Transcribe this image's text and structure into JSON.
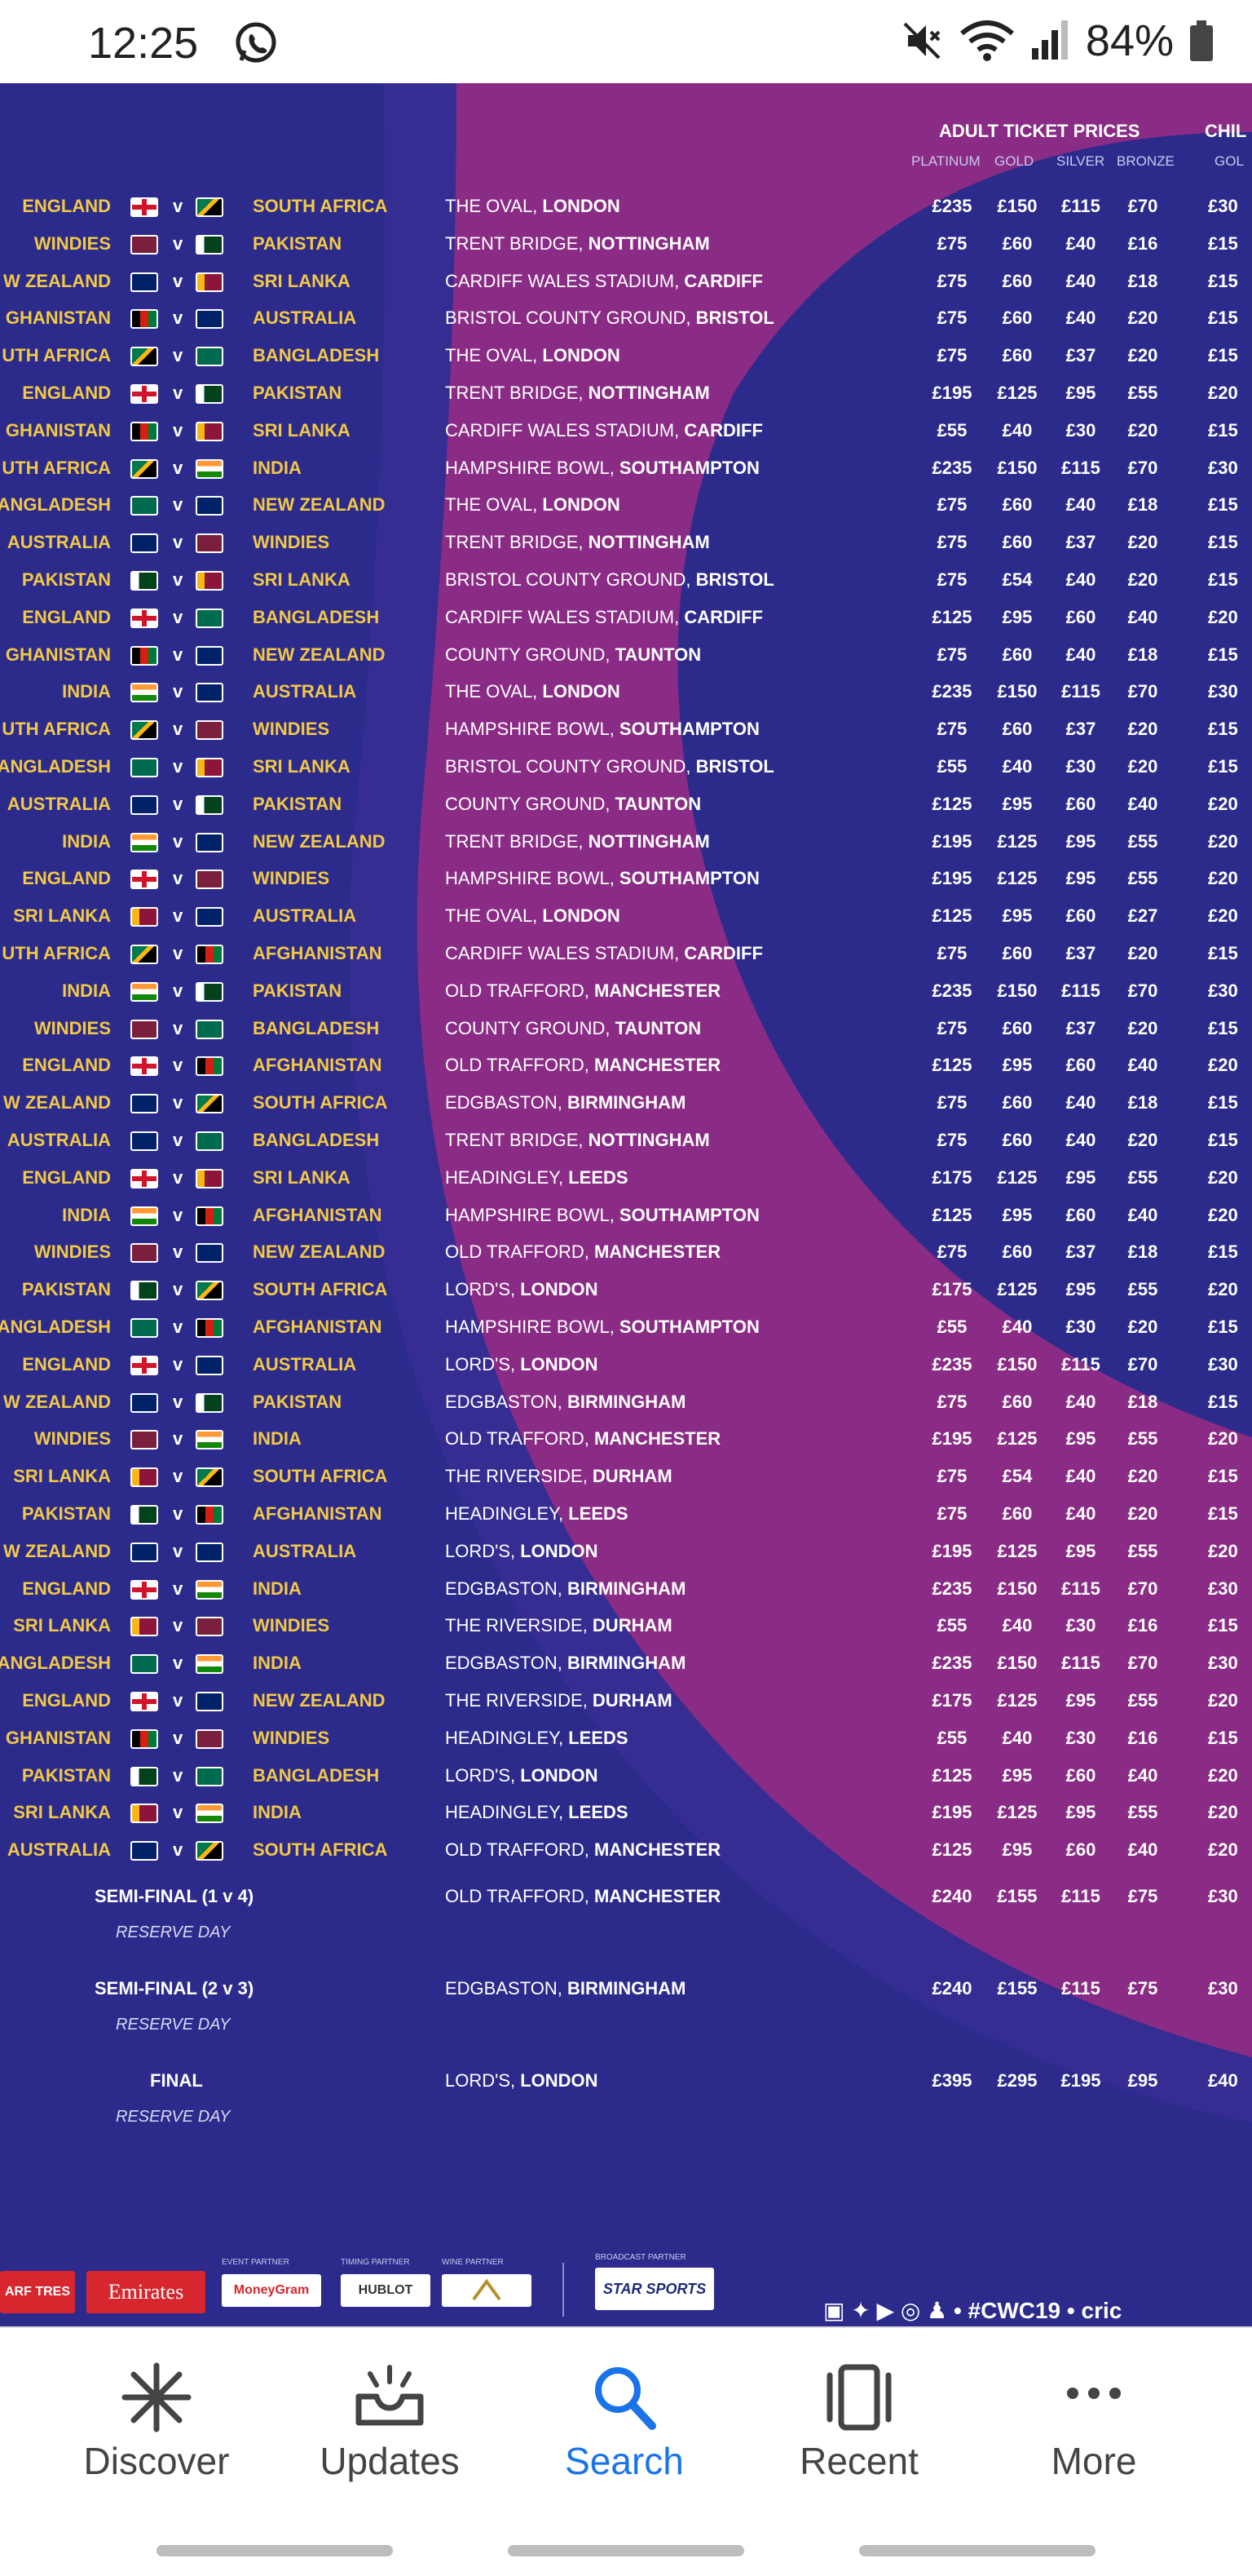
{
  "status_bar": {
    "time": "12:25",
    "battery": "84%",
    "icons": [
      "whatsapp-icon",
      "mute-icon",
      "wifi-icon",
      "signal-icon",
      "battery-icon"
    ]
  },
  "header": {
    "adult_title": "ADULT TICKET PRICES",
    "child_title": "CHIL",
    "cols": [
      "PLATINUM",
      "GOLD",
      "SILVER",
      "BRONZE"
    ],
    "child_col": "GOL"
  },
  "colors": {
    "background": "#2c2b8c",
    "swoosh": "#8a2c86",
    "team_text": "#f2c945",
    "accent_blue": "#1a73e8"
  },
  "matches": [
    {
      "t1": "ENGLAND",
      "t2": "SOUTH AFRICA",
      "venue": "THE OVAL,",
      "city": "LONDON",
      "p": [
        "£235",
        "£150",
        "£115",
        "£70"
      ],
      "c": "£30",
      "f1": "eng",
      "f2": "rsa"
    },
    {
      "t1": "WINDIES",
      "t2": "PAKISTAN",
      "venue": "TRENT BRIDGE,",
      "city": "NOTTINGHAM",
      "p": [
        "£75",
        "£60",
        "£40",
        "£16"
      ],
      "c": "£15",
      "f1": "wi",
      "f2": "pak"
    },
    {
      "t1": "W ZEALAND",
      "t2": "SRI LANKA",
      "venue": "CARDIFF WALES STADIUM,",
      "city": "CARDIFF",
      "p": [
        "£75",
        "£60",
        "£40",
        "£18"
      ],
      "c": "£15",
      "f1": "nz",
      "f2": "sl"
    },
    {
      "t1": "GHANISTAN",
      "t2": "AUSTRALIA",
      "venue": "BRISTOL COUNTY GROUND,",
      "city": "BRISTOL",
      "p": [
        "£75",
        "£60",
        "£40",
        "£20"
      ],
      "c": "£15",
      "f1": "afg",
      "f2": "aus"
    },
    {
      "t1": "UTH AFRICA",
      "t2": "BANGLADESH",
      "venue": "THE OVAL,",
      "city": "LONDON",
      "p": [
        "£75",
        "£60",
        "£37",
        "£20"
      ],
      "c": "£15",
      "f1": "rsa",
      "f2": "ban"
    },
    {
      "t1": "ENGLAND",
      "t2": "PAKISTAN",
      "venue": "TRENT BRIDGE,",
      "city": "NOTTINGHAM",
      "p": [
        "£195",
        "£125",
        "£95",
        "£55"
      ],
      "c": "£20",
      "f1": "eng",
      "f2": "pak"
    },
    {
      "t1": "GHANISTAN",
      "t2": "SRI LANKA",
      "venue": "CARDIFF WALES STADIUM,",
      "city": "CARDIFF",
      "p": [
        "£55",
        "£40",
        "£30",
        "£20"
      ],
      "c": "£15",
      "f1": "afg",
      "f2": "sl"
    },
    {
      "t1": "UTH AFRICA",
      "t2": "INDIA",
      "venue": "HAMPSHIRE BOWL,",
      "city": "SOUTHAMPTON",
      "p": [
        "£235",
        "£150",
        "£115",
        "£70"
      ],
      "c": "£30",
      "f1": "rsa",
      "f2": "ind"
    },
    {
      "t1": "ANGLADESH",
      "t2": "NEW ZEALAND",
      "venue": "THE OVAL,",
      "city": "LONDON",
      "p": [
        "£75",
        "£60",
        "£40",
        "£18"
      ],
      "c": "£15",
      "f1": "ban",
      "f2": "nz"
    },
    {
      "t1": "AUSTRALIA",
      "t2": "WINDIES",
      "venue": "TRENT BRIDGE,",
      "city": "NOTTINGHAM",
      "p": [
        "£75",
        "£60",
        "£37",
        "£20"
      ],
      "c": "£15",
      "f1": "aus",
      "f2": "wi"
    },
    {
      "t1": "PAKISTAN",
      "t2": "SRI LANKA",
      "venue": "BRISTOL COUNTY GROUND,",
      "city": "BRISTOL",
      "p": [
        "£75",
        "£54",
        "£40",
        "£20"
      ],
      "c": "£15",
      "f1": "pak",
      "f2": "sl"
    },
    {
      "t1": "ENGLAND",
      "t2": "BANGLADESH",
      "venue": "CARDIFF WALES STADIUM,",
      "city": "CARDIFF",
      "p": [
        "£125",
        "£95",
        "£60",
        "£40"
      ],
      "c": "£20",
      "f1": "eng",
      "f2": "ban"
    },
    {
      "t1": "GHANISTAN",
      "t2": "NEW ZEALAND",
      "venue": "COUNTY GROUND,",
      "city": "TAUNTON",
      "p": [
        "£75",
        "£60",
        "£40",
        "£18"
      ],
      "c": "£15",
      "f1": "afg",
      "f2": "nz"
    },
    {
      "t1": "INDIA",
      "t2": "AUSTRALIA",
      "venue": "THE OVAL,",
      "city": "LONDON",
      "p": [
        "£235",
        "£150",
        "£115",
        "£70"
      ],
      "c": "£30",
      "f1": "ind",
      "f2": "aus"
    },
    {
      "t1": "UTH AFRICA",
      "t2": "WINDIES",
      "venue": "HAMPSHIRE BOWL,",
      "city": "SOUTHAMPTON",
      "p": [
        "£75",
        "£60",
        "£37",
        "£20"
      ],
      "c": "£15",
      "f1": "rsa",
      "f2": "wi"
    },
    {
      "t1": "ANGLADESH",
      "t2": "SRI LANKA",
      "venue": "BRISTOL COUNTY GROUND,",
      "city": "BRISTOL",
      "p": [
        "£55",
        "£40",
        "£30",
        "£20"
      ],
      "c": "£15",
      "f1": "ban",
      "f2": "sl"
    },
    {
      "t1": "AUSTRALIA",
      "t2": "PAKISTAN",
      "venue": "COUNTY GROUND,",
      "city": "TAUNTON",
      "p": [
        "£125",
        "£95",
        "£60",
        "£40"
      ],
      "c": "£20",
      "f1": "aus",
      "f2": "pak"
    },
    {
      "t1": "INDIA",
      "t2": "NEW ZEALAND",
      "venue": "TRENT BRIDGE,",
      "city": "NOTTINGHAM",
      "p": [
        "£195",
        "£125",
        "£95",
        "£55"
      ],
      "c": "£20",
      "f1": "ind",
      "f2": "nz"
    },
    {
      "t1": "ENGLAND",
      "t2": "WINDIES",
      "venue": "HAMPSHIRE BOWL,",
      "city": "SOUTHAMPTON",
      "p": [
        "£195",
        "£125",
        "£95",
        "£55"
      ],
      "c": "£20",
      "f1": "eng",
      "f2": "wi"
    },
    {
      "t1": "SRI LANKA",
      "t2": "AUSTRALIA",
      "venue": "THE OVAL,",
      "city": "LONDON",
      "p": [
        "£125",
        "£95",
        "£60",
        "£27"
      ],
      "c": "£20",
      "f1": "sl",
      "f2": "aus"
    },
    {
      "t1": "UTH AFRICA",
      "t2": "AFGHANISTAN",
      "venue": "CARDIFF WALES STADIUM,",
      "city": "CARDIFF",
      "p": [
        "£75",
        "£60",
        "£37",
        "£20"
      ],
      "c": "£15",
      "f1": "rsa",
      "f2": "afg"
    },
    {
      "t1": "INDIA",
      "t2": "PAKISTAN",
      "venue": "OLD TRAFFORD,",
      "city": "MANCHESTER",
      "p": [
        "£235",
        "£150",
        "£115",
        "£70"
      ],
      "c": "£30",
      "f1": "ind",
      "f2": "pak"
    },
    {
      "t1": "WINDIES",
      "t2": "BANGLADESH",
      "venue": "COUNTY GROUND,",
      "city": "TAUNTON",
      "p": [
        "£75",
        "£60",
        "£37",
        "£20"
      ],
      "c": "£15",
      "f1": "wi",
      "f2": "ban"
    },
    {
      "t1": "ENGLAND",
      "t2": "AFGHANISTAN",
      "venue": "OLD TRAFFORD,",
      "city": "MANCHESTER",
      "p": [
        "£125",
        "£95",
        "£60",
        "£40"
      ],
      "c": "£20",
      "f1": "eng",
      "f2": "afg"
    },
    {
      "t1": "W ZEALAND",
      "t2": "SOUTH AFRICA",
      "venue": "EDGBASTON,",
      "city": "BIRMINGHAM",
      "p": [
        "£75",
        "£60",
        "£40",
        "£18"
      ],
      "c": "£15",
      "f1": "nz",
      "f2": "rsa"
    },
    {
      "t1": "AUSTRALIA",
      "t2": "BANGLADESH",
      "venue": "TRENT BRIDGE,",
      "city": "NOTTINGHAM",
      "p": [
        "£75",
        "£60",
        "£40",
        "£20"
      ],
      "c": "£15",
      "f1": "aus",
      "f2": "ban"
    },
    {
      "t1": "ENGLAND",
      "t2": "SRI LANKA",
      "venue": "HEADINGLEY,",
      "city": "LEEDS",
      "p": [
        "£175",
        "£125",
        "£95",
        "£55"
      ],
      "c": "£20",
      "f1": "eng",
      "f2": "sl"
    },
    {
      "t1": "INDIA",
      "t2": "AFGHANISTAN",
      "venue": "HAMPSHIRE BOWL,",
      "city": "SOUTHAMPTON",
      "p": [
        "£125",
        "£95",
        "£60",
        "£40"
      ],
      "c": "£20",
      "f1": "ind",
      "f2": "afg"
    },
    {
      "t1": "WINDIES",
      "t2": "NEW ZEALAND",
      "venue": "OLD TRAFFORD,",
      "city": "MANCHESTER",
      "p": [
        "£75",
        "£60",
        "£37",
        "£18"
      ],
      "c": "£15",
      "f1": "wi",
      "f2": "nz"
    },
    {
      "t1": "PAKISTAN",
      "t2": "SOUTH AFRICA",
      "venue": "LORD'S,",
      "city": "LONDON",
      "p": [
        "£175",
        "£125",
        "£95",
        "£55"
      ],
      "c": "£20",
      "f1": "pak",
      "f2": "rsa"
    },
    {
      "t1": "ANGLADESH",
      "t2": "AFGHANISTAN",
      "venue": "HAMPSHIRE BOWL,",
      "city": "SOUTHAMPTON",
      "p": [
        "£55",
        "£40",
        "£30",
        "£20"
      ],
      "c": "£15",
      "f1": "ban",
      "f2": "afg"
    },
    {
      "t1": "ENGLAND",
      "t2": "AUSTRALIA",
      "venue": "LORD'S,",
      "city": "LONDON",
      "p": [
        "£235",
        "£150",
        "£115",
        "£70"
      ],
      "c": "£30",
      "f1": "eng",
      "f2": "aus"
    },
    {
      "t1": "W ZEALAND",
      "t2": "PAKISTAN",
      "venue": "EDGBASTON,",
      "city": "BIRMINGHAM",
      "p": [
        "£75",
        "£60",
        "£40",
        "£18"
      ],
      "c": "£15",
      "f1": "nz",
      "f2": "pak"
    },
    {
      "t1": "WINDIES",
      "t2": "INDIA",
      "venue": "OLD TRAFFORD,",
      "city": "MANCHESTER",
      "p": [
        "£195",
        "£125",
        "£95",
        "£55"
      ],
      "c": "£20",
      "f1": "wi",
      "f2": "ind"
    },
    {
      "t1": "SRI LANKA",
      "t2": "SOUTH AFRICA",
      "venue": "THE RIVERSIDE,",
      "city": "DURHAM",
      "p": [
        "£75",
        "£54",
        "£40",
        "£20"
      ],
      "c": "£15",
      "f1": "sl",
      "f2": "rsa"
    },
    {
      "t1": "PAKISTAN",
      "t2": "AFGHANISTAN",
      "venue": "HEADINGLEY,",
      "city": "LEEDS",
      "p": [
        "£75",
        "£60",
        "£40",
        "£20"
      ],
      "c": "£15",
      "f1": "pak",
      "f2": "afg"
    },
    {
      "t1": "W ZEALAND",
      "t2": "AUSTRALIA",
      "venue": "LORD'S,",
      "city": "LONDON",
      "p": [
        "£195",
        "£125",
        "£95",
        "£55"
      ],
      "c": "£20",
      "f1": "nz",
      "f2": "aus"
    },
    {
      "t1": "ENGLAND",
      "t2": "INDIA",
      "venue": "EDGBASTON,",
      "city": "BIRMINGHAM",
      "p": [
        "£235",
        "£150",
        "£115",
        "£70"
      ],
      "c": "£30",
      "f1": "eng",
      "f2": "ind"
    },
    {
      "t1": "SRI LANKA",
      "t2": "WINDIES",
      "venue": "THE RIVERSIDE,",
      "city": "DURHAM",
      "p": [
        "£55",
        "£40",
        "£30",
        "£16"
      ],
      "c": "£15",
      "f1": "sl",
      "f2": "wi"
    },
    {
      "t1": "ANGLADESH",
      "t2": "INDIA",
      "venue": "EDGBASTON,",
      "city": "BIRMINGHAM",
      "p": [
        "£235",
        "£150",
        "£115",
        "£70"
      ],
      "c": "£30",
      "f1": "ban",
      "f2": "ind"
    },
    {
      "t1": "ENGLAND",
      "t2": "NEW ZEALAND",
      "venue": "THE RIVERSIDE,",
      "city": "DURHAM",
      "p": [
        "£175",
        "£125",
        "£95",
        "£55"
      ],
      "c": "£20",
      "f1": "eng",
      "f2": "nz"
    },
    {
      "t1": "GHANISTAN",
      "t2": "WINDIES",
      "venue": "HEADINGLEY,",
      "city": "LEEDS",
      "p": [
        "£55",
        "£40",
        "£30",
        "£16"
      ],
      "c": "£15",
      "f1": "afg",
      "f2": "wi"
    },
    {
      "t1": "PAKISTAN",
      "t2": "BANGLADESH",
      "venue": "LORD'S,",
      "city": "LONDON",
      "p": [
        "£125",
        "£95",
        "£60",
        "£40"
      ],
      "c": "£20",
      "f1": "pak",
      "f2": "ban"
    },
    {
      "t1": "SRI LANKA",
      "t2": "INDIA",
      "venue": "HEADINGLEY,",
      "city": "LEEDS",
      "p": [
        "£195",
        "£125",
        "£95",
        "£55"
      ],
      "c": "£20",
      "f1": "sl",
      "f2": "ind"
    },
    {
      "t1": "AUSTRALIA",
      "t2": "SOUTH AFRICA",
      "venue": "OLD TRAFFORD,",
      "city": "MANCHESTER",
      "p": [
        "£125",
        "£95",
        "£60",
        "£40"
      ],
      "c": "£20",
      "f1": "aus",
      "f2": "rsa"
    }
  ],
  "knockouts": [
    {
      "label": "SEMI-FINAL (1 v 4)",
      "reserve": "RESERVE DAY",
      "venue": "OLD TRAFFORD,",
      "city": "MANCHESTER",
      "p": [
        "£240",
        "£155",
        "£115",
        "£75"
      ],
      "c": "£30"
    },
    {
      "label": "SEMI-FINAL (2 v 3)",
      "reserve": "RESERVE DAY",
      "venue": "EDGBASTON,",
      "city": "BIRMINGHAM",
      "p": [
        "£240",
        "£155",
        "£115",
        "£75"
      ],
      "c": "£30"
    },
    {
      "label": "FINAL",
      "reserve": "RESERVE DAY",
      "venue": "LORD'S,",
      "city": "LONDON",
      "p": [
        "£395",
        "£295",
        "£195",
        "£95"
      ],
      "c": "£40"
    }
  ],
  "sponsors": {
    "left_partial": "ARF TRES",
    "emirates": "Emirates",
    "event_partner_caption": "EVENT PARTNER",
    "event_partner": "MoneyGram",
    "timing_partner_caption": "TIMING PARTNER",
    "timing_partner": "HUBLOT",
    "wine_partner_caption": "WINE PARTNER",
    "wine_partner": "",
    "broadcast_caption": "BROADCAST PARTNER",
    "broadcast": "STAR SPORTS",
    "social": "#CWC19",
    "site_partial": "cric"
  },
  "bottom_nav": [
    {
      "label": "Discover",
      "icon": "asterisk-icon",
      "active": false
    },
    {
      "label": "Updates",
      "icon": "updates-tray-icon",
      "active": false
    },
    {
      "label": "Search",
      "icon": "search-icon",
      "active": true
    },
    {
      "label": "Recent",
      "icon": "recent-cards-icon",
      "active": false
    },
    {
      "label": "More",
      "icon": "more-dots-icon",
      "active": false
    }
  ]
}
